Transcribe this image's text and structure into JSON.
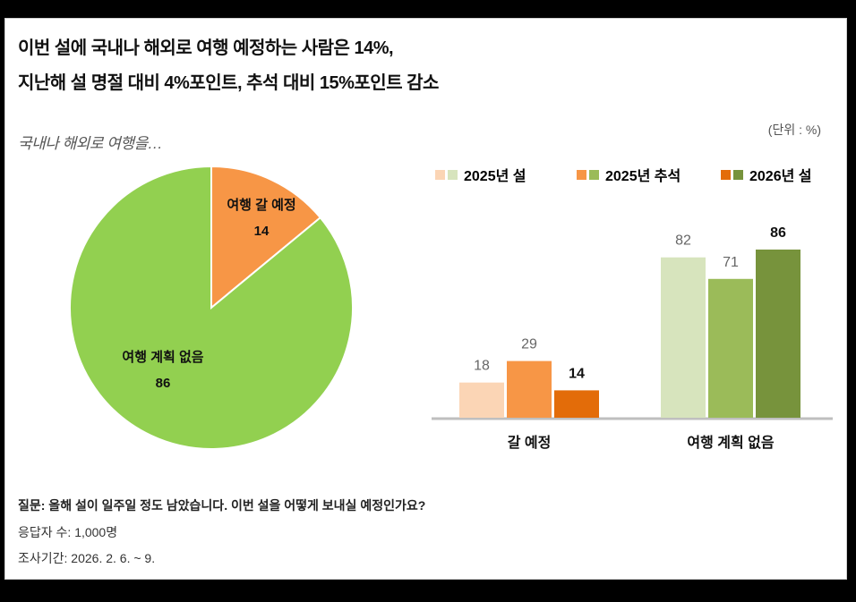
{
  "title": [
    "이번 설에 국내나 해외로 여행 예정하는 사람은 14%,",
    "지난해 설 명절 대비 4%포인트, 추석 대비 15%포인트 감소"
  ],
  "unit": "(단위 : %)",
  "footer": {
    "question": "질문: 올해 설이 일주일 정도 남았습니다. 이번 설을 어떻게 보내실 예정인가요?",
    "respondents": "응답자 수: 1,000명",
    "period": "조사기간: 2026. 2. 6. ~ 9."
  },
  "chart_data": [
    {
      "type": "pie",
      "title": "국내나 해외로 여행을…",
      "slices": [
        {
          "label": "여행 갈 예정",
          "value": 14,
          "color": "#f79646"
        },
        {
          "label": "여행 계획 없음",
          "value": 86,
          "color": "#92d050"
        }
      ]
    },
    {
      "type": "bar",
      "categories": [
        "갈 예정",
        "여행 계획 없음"
      ],
      "series": [
        {
          "name": "2025년 설",
          "values": [
            18,
            82
          ],
          "colors": [
            "#fbd5b5",
            "#d7e4bd"
          ]
        },
        {
          "name": "2025년 추석",
          "values": [
            29,
            71
          ],
          "colors": [
            "#f79646",
            "#9bbb59"
          ]
        },
        {
          "name": "2026년 설",
          "values": [
            14,
            86
          ],
          "colors": [
            "#e36c09",
            "#77933c"
          ]
        }
      ],
      "ylim": [
        0,
        100
      ],
      "legend": "top",
      "grid": false
    }
  ]
}
